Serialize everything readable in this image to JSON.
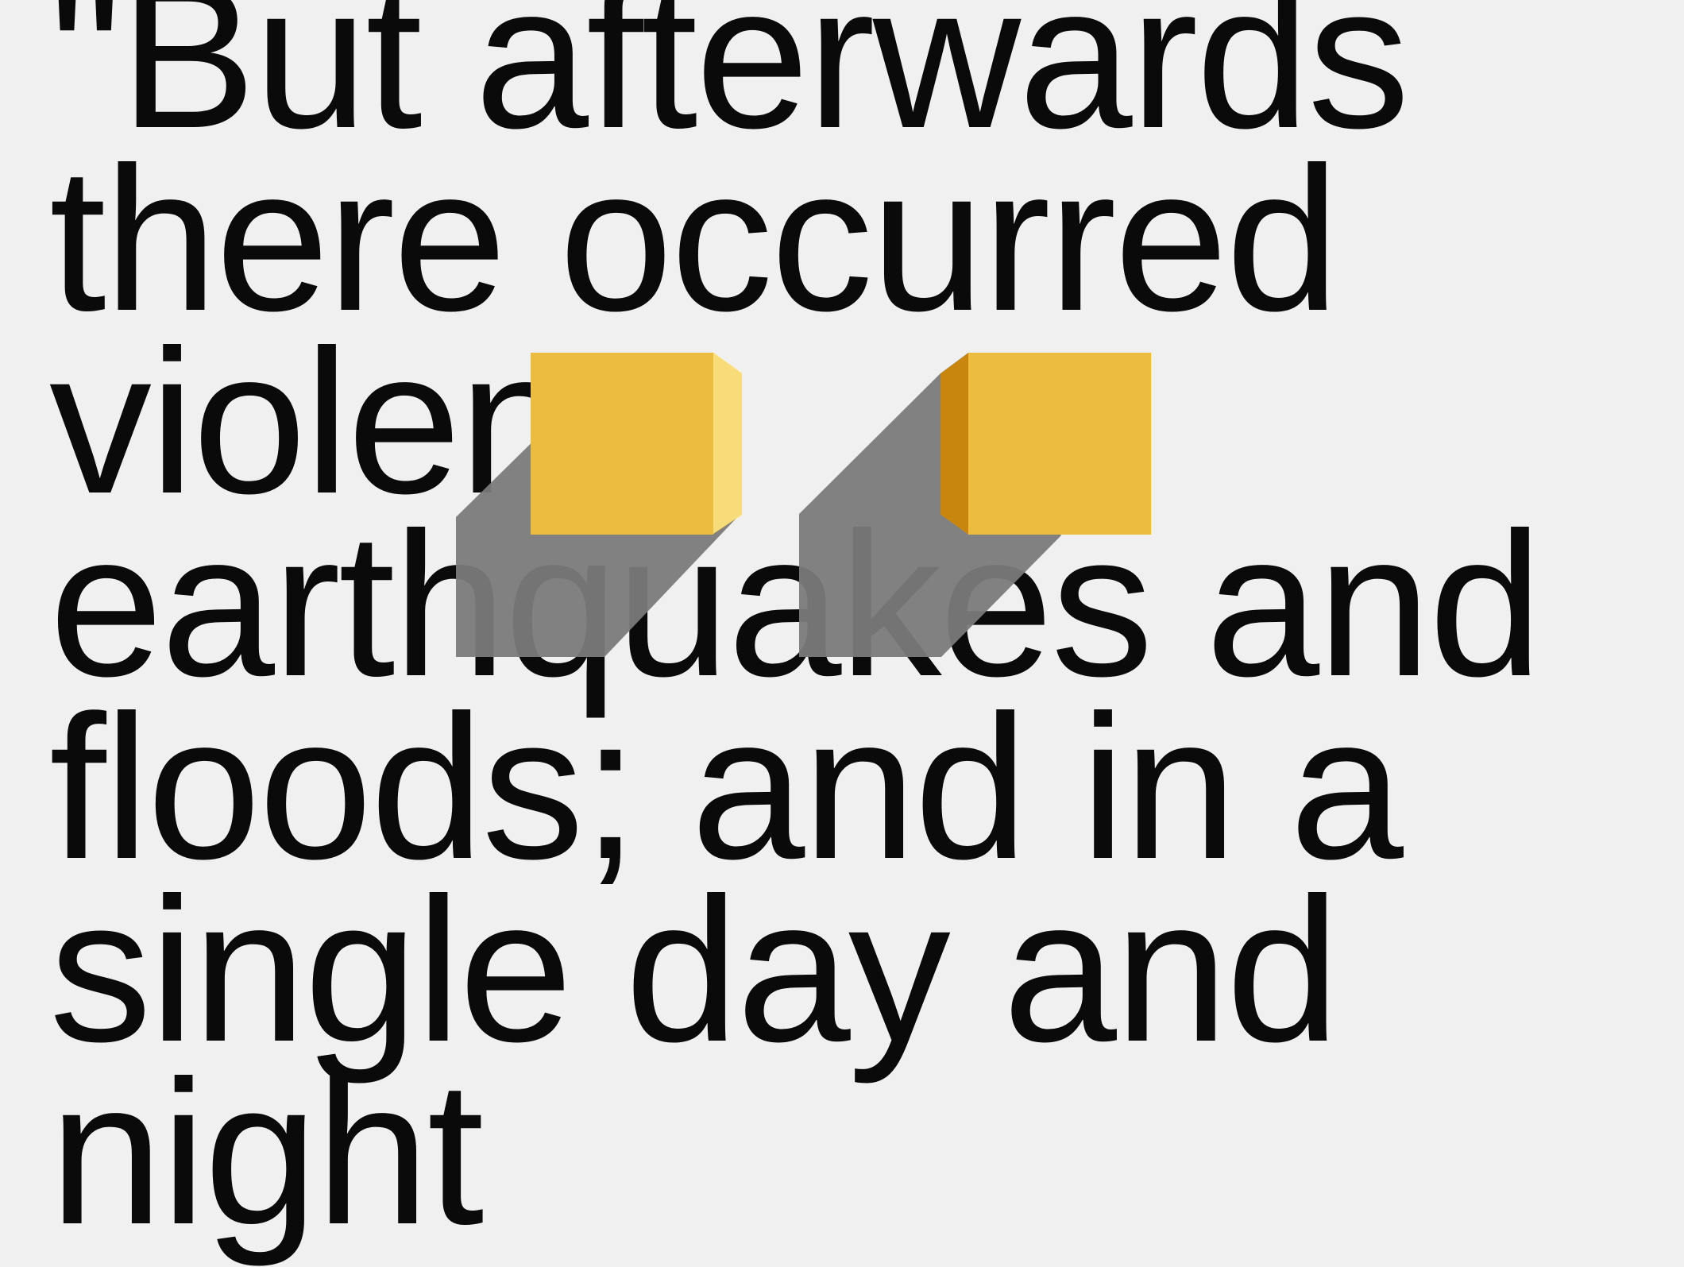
{
  "quote": {
    "text": "\"But afterwards there occurred violent earthquakes and floods; and in a single day and night"
  },
  "colors": {
    "background": "#f0f0f0",
    "text": "#0a0a0a",
    "block_front": "#ecbc40",
    "block_highlight": "#f9dc7a",
    "block_dark_side": "#c8860e",
    "shadow": "#7a7a7a"
  }
}
